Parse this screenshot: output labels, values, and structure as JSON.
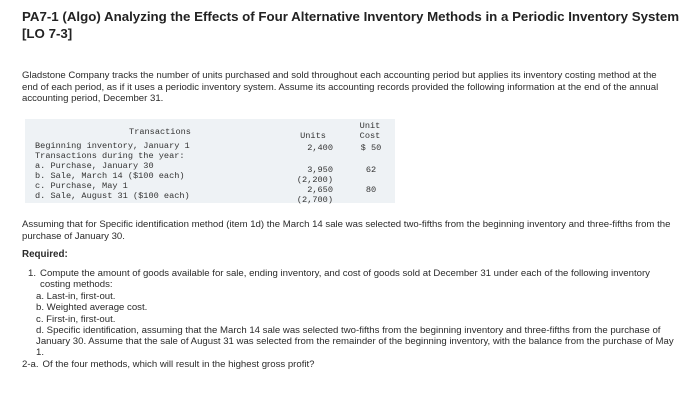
{
  "header": {
    "title": "PA7-1 (Algo) Analyzing the Effects of Four Alternative Inventory Methods in a Periodic Inventory System [LO 7-3]"
  },
  "intro": "Gladstone Company tracks the number of units purchased and sold throughout each accounting period but applies its inventory costing method at the end of each period, as if it uses a periodic inventory system. Assume its accounting records provided the following information at the end of the annual accounting period, December 31.",
  "table": {
    "headers": [
      "Transactions",
      "Units",
      "Unit Cost"
    ],
    "rows": [
      {
        "label": "Beginning inventory, January 1",
        "units": "2,400",
        "cost": "$ 50"
      },
      {
        "label": "Transactions during the year:"
      },
      {
        "label": "a. Purchase, January 30",
        "units": "3,950",
        "cost": "62"
      },
      {
        "label": "b. Sale, March 14 ($100 each)",
        "units": "(2,200)"
      },
      {
        "label": "c. Purchase, May 1",
        "units": "2,650",
        "cost": "80"
      },
      {
        "label": "d. Sale, August 31 ($100 each)",
        "units": "(2,700)"
      }
    ]
  },
  "note": "Assuming that for Specific identification method (item 1d) the March 14 sale was selected two-fifths from the beginning inventory and three-fifths from the purchase of January 30.",
  "required": {
    "heading": "Required:",
    "items": [
      {
        "number": "1.",
        "text": "Compute the amount of goods available for sale, ending inventory, and cost of goods sold at December 31 under each of the following inventory costing methods:",
        "subitems": [
          "a. Last-in, first-out.",
          "b. Weighted average cost.",
          "c. First-in, first-out.",
          "d. Specific identification, assuming that the March 14 sale was selected two-fifths from the beginning inventory and three-fifths from the purchase of January 30. Assume that the sale of August 31 was selected from the remainder of the beginning inventory, with the balance from the purchase of May 1."
        ]
      },
      {
        "number": "2-a.",
        "text": "Of the four methods, which will result in the highest gross profit?"
      }
    ]
  }
}
